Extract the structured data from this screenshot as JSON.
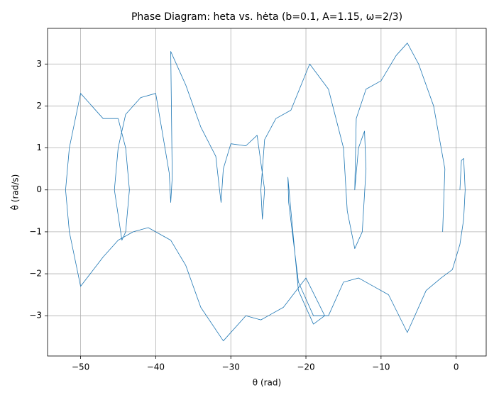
{
  "chart_data": {
    "type": "line",
    "title": "Phase Diagram: heta vs. hėta (b=0.1, A=1.15, ω=2/3)",
    "xlabel": "θ (rad)",
    "ylabel": "θ̇ (rad/s)",
    "xlim": [
      -54.4,
      4.0
    ],
    "ylim": [
      -3.96,
      3.85
    ],
    "xticks": [
      {
        "value": -50,
        "label": "−50"
      },
      {
        "value": -40,
        "label": "−40"
      },
      {
        "value": -30,
        "label": "−30"
      },
      {
        "value": -20,
        "label": "−20"
      },
      {
        "value": -10,
        "label": "−10"
      },
      0
    ],
    "yticks": [
      {
        "value": -3,
        "label": "−3"
      },
      {
        "value": -2,
        "label": "−2"
      },
      {
        "value": -1,
        "label": "−1"
      },
      0,
      1,
      2,
      3
    ],
    "grid": true,
    "series": [
      {
        "color": "#1f77b4",
        "x": [
          0.5,
          0.7,
          1.0,
          1.2,
          1.0,
          0.5,
          -0.5,
          -2,
          -4,
          -6.5,
          -9,
          -11,
          -13,
          -15,
          -17,
          -19,
          -21,
          -22.3,
          -22.4,
          -22,
          -21,
          -19,
          -17.5,
          -20,
          -23,
          -26,
          -28,
          -31,
          -34,
          -36,
          -38,
          -41,
          -43,
          -45,
          -47,
          -50,
          -51.5,
          -52,
          -51.5,
          -50,
          -47,
          -45,
          -44,
          -43.5,
          -44,
          -44.5,
          -45.5,
          -45,
          -44,
          -42,
          -40,
          -38.2,
          -38,
          -37.8,
          -38,
          -36,
          -34,
          -32,
          -31.5,
          -31.3,
          -31,
          -30,
          -28,
          -26.5,
          -25.5,
          -25.8,
          -26,
          -25.5,
          -24,
          -22,
          -19.5,
          -17,
          -15,
          -14.5,
          -13.5,
          -12.5,
          -12,
          -12.2,
          -13,
          -13.5,
          -13.3,
          -12,
          -10,
          -8,
          -6.5,
          -5,
          -3,
          -1.5,
          -1.8
        ],
        "values": [
          0,
          0.7,
          0.75,
          0,
          -0.7,
          -1.3,
          -1.9,
          -2.1,
          -2.4,
          -3.4,
          -2.5,
          -2.3,
          -2.1,
          -2.2,
          -3.0,
          -3.0,
          -2.2,
          -0.3,
          0.3,
          -0.5,
          -2.4,
          -3.2,
          -3.0,
          -2.1,
          -2.8,
          -3.1,
          -3.0,
          -3.6,
          -2.8,
          -1.8,
          -1.2,
          -0.9,
          -1.0,
          -1.2,
          -1.6,
          -2.3,
          -1.0,
          0,
          1.0,
          2.3,
          1.7,
          1.7,
          1.0,
          0,
          -1.0,
          -1.2,
          0,
          1.0,
          1.8,
          2.2,
          2.3,
          0.4,
          -0.3,
          0.3,
          3.3,
          2.5,
          1.5,
          0.8,
          0,
          -0.3,
          0.5,
          1.1,
          1.05,
          1.3,
          0,
          -0.7,
          0,
          1.2,
          1.7,
          1.9,
          3.0,
          2.4,
          1.0,
          -0.5,
          -1.4,
          -1.0,
          0.5,
          1.4,
          1.0,
          0,
          1.7,
          2.4,
          2.6,
          3.2,
          3.5,
          3.0,
          2.0,
          0.5,
          -1.0
        ]
      }
    ]
  }
}
